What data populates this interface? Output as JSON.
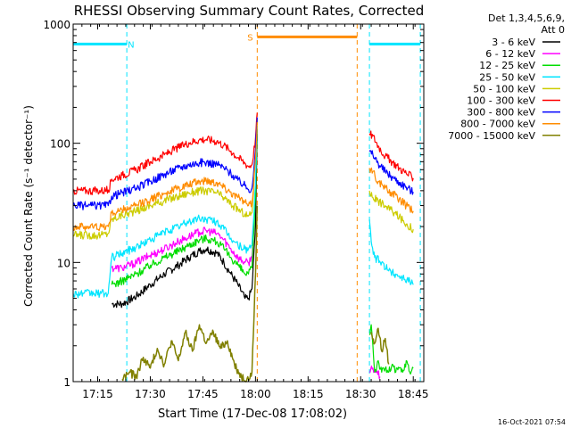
{
  "chart_data": {
    "type": "line",
    "title": "RHESSI Observing Summary Count Rates, Corrected",
    "ylabel": "Corrected Count Rate (s⁻¹ detector⁻¹)",
    "xlabel": "Start Time (17-Dec-08 17:08:02)",
    "yscale": "log",
    "ylim": [
      1,
      1000
    ],
    "xlim_min": [
      0,
      100
    ],
    "x_unit": "minutes after 17:08:02",
    "x_ticks": [
      {
        "label": "17:15",
        "min": 7
      },
      {
        "label": "17:30",
        "min": 22
      },
      {
        "label": "17:45",
        "min": 37
      },
      {
        "label": "18:00",
        "min": 52
      },
      {
        "label": "18:15",
        "min": 67
      },
      {
        "label": "18:30",
        "min": 82
      },
      {
        "label": "18:45",
        "min": 97
      }
    ],
    "y_ticks": [
      {
        "label": "1",
        "value": 1
      },
      {
        "label": "10",
        "value": 10
      },
      {
        "label": "100",
        "value": 100
      },
      {
        "label": "1000",
        "value": 1000
      }
    ],
    "legend": {
      "position": "right",
      "header": [
        "Det 1,3,4,5,6,9,",
        "Att 0"
      ]
    },
    "annotations": [
      {
        "text": "N",
        "min": 16.5,
        "value": 680,
        "color": "#00e5ff"
      },
      {
        "text": "S",
        "min": 50.5,
        "value": 780,
        "color": "#ff8c00"
      }
    ],
    "intervals": [
      {
        "name": "night",
        "color": "#00e5ff",
        "x": [
          [
            0,
            15.3
          ],
          [
            84.5,
            99
          ]
        ],
        "level": 680
      },
      {
        "name": "saa",
        "color": "#ff8c00",
        "x": [
          [
            52.5,
            81
          ]
        ],
        "level": 780
      }
    ],
    "series": [
      {
        "name": "3 - 6 keV",
        "color": "#000000",
        "lw": 1.2,
        "x": [
          11,
          14,
          18,
          22,
          26,
          30,
          33,
          36,
          38,
          41,
          43,
          45,
          47,
          49,
          50,
          51,
          52,
          52.5
        ],
        "y": [
          4.5,
          4.5,
          5.2,
          6.5,
          8,
          9.5,
          11,
          12.5,
          13,
          12,
          10,
          8,
          6.5,
          5,
          5,
          6,
          20,
          120
        ]
      },
      {
        "name": "6 - 12 keV",
        "color": "#ff00ff",
        "lw": 1.2,
        "x": [
          11,
          14,
          18,
          22,
          26,
          30,
          33,
          36,
          38,
          41,
          43,
          45,
          47,
          49,
          50,
          51,
          52,
          52.5,
          84.5,
          85.5,
          86.5,
          87.5
        ],
        "y": [
          9,
          9,
          10,
          11.5,
          13,
          15,
          16.5,
          18,
          18.5,
          17.5,
          15.5,
          13,
          11,
          10,
          10,
          11,
          40,
          130,
          1.2,
          1.3,
          1.2,
          1.1
        ]
      },
      {
        "name": "12 - 25 keV",
        "color": "#00dd00",
        "lw": 1.2,
        "x": [
          11,
          14,
          18,
          22,
          26,
          30,
          33,
          36,
          38,
          41,
          43,
          45,
          47,
          49,
          50,
          51,
          52,
          52.5,
          84.5,
          85,
          85.5,
          86,
          87,
          88,
          89,
          90,
          91,
          92,
          93,
          94,
          95,
          96,
          97
        ],
        "y": [
          6.5,
          7,
          8,
          9.5,
          11,
          12.5,
          14,
          15.5,
          16,
          15,
          13,
          11,
          9.5,
          8,
          8,
          9,
          35,
          130,
          2.5,
          3,
          2,
          1.2,
          1.5,
          1.2,
          1.3,
          1.2,
          1.4,
          1.2,
          1.3,
          1.2,
          1.5,
          1.2,
          1.3
        ]
      },
      {
        "name": "25 - 50 keV",
        "color": "#00e5ff",
        "lw": 1.2,
        "x": [
          0,
          3,
          6,
          8,
          10,
          11,
          14,
          18,
          22,
          26,
          30,
          33,
          36,
          38,
          41,
          43,
          45,
          47,
          49,
          50,
          51,
          52,
          52.5,
          84.5,
          85,
          86,
          88,
          90,
          92,
          94,
          96,
          97
        ],
        "y": [
          5.5,
          5.5,
          5.5,
          5.5,
          5.5,
          11,
          12,
          13.5,
          15.5,
          18,
          20,
          22,
          23.5,
          23,
          22,
          19,
          16,
          14,
          13,
          13,
          14,
          45,
          140,
          23,
          15,
          11,
          10,
          8.5,
          8,
          7.5,
          7,
          6.5
        ]
      },
      {
        "name": "50 - 100 keV",
        "color": "#cccc00",
        "lw": 1.2,
        "x": [
          0,
          4,
          8,
          10,
          11,
          14,
          18,
          22,
          26,
          30,
          33,
          36,
          38,
          41,
          43,
          45,
          47,
          49,
          50,
          51,
          52,
          52.5,
          84.5,
          85.5,
          87,
          89,
          91,
          93,
          95,
          97
        ],
        "y": [
          17,
          17,
          17,
          17.5,
          23,
          25,
          27,
          30,
          33,
          36,
          38.5,
          40,
          40,
          38.5,
          35,
          31,
          28,
          25.5,
          24.5,
          26,
          80,
          160,
          40,
          35,
          33,
          30,
          27,
          24,
          21,
          19
        ]
      },
      {
        "name": "100 - 300 keV",
        "color": "#ff0000",
        "lw": 1.2,
        "x": [
          0,
          4,
          8,
          10,
          11,
          14,
          18,
          22,
          26,
          30,
          33,
          36,
          38,
          41,
          43,
          45,
          47,
          49,
          50,
          51,
          52,
          52.5,
          84.5,
          85.5,
          87,
          89,
          91,
          93,
          95,
          97
        ],
        "y": [
          40,
          40,
          40,
          40.5,
          50,
          54,
          60,
          70,
          80,
          92,
          101,
          107,
          108,
          104,
          96,
          86,
          76,
          68,
          64,
          66,
          110,
          180,
          120,
          115,
          95,
          78,
          70,
          62,
          56,
          51
        ]
      },
      {
        "name": "300 - 800 keV",
        "color": "#0000ff",
        "lw": 1.2,
        "x": [
          0,
          4,
          8,
          10,
          11,
          14,
          18,
          22,
          26,
          30,
          33,
          36,
          38,
          41,
          43,
          45,
          47,
          49,
          50,
          51,
          52,
          52.5,
          84.5,
          85.5,
          87,
          89,
          91,
          93,
          95,
          97
        ],
        "y": [
          30,
          30,
          30,
          30,
          36,
          38.5,
          42,
          48,
          55,
          62,
          66,
          69,
          69,
          67,
          62,
          56,
          49,
          44,
          41,
          42,
          90,
          165,
          85,
          80,
          68,
          58,
          52,
          47,
          43,
          39
        ]
      },
      {
        "name": "800 - 7000 keV",
        "color": "#ff8c00",
        "lw": 1.2,
        "x": [
          0,
          4,
          8,
          10,
          11,
          14,
          18,
          22,
          26,
          30,
          33,
          36,
          38,
          41,
          43,
          45,
          47,
          49,
          50,
          51,
          52,
          52.5,
          84.5,
          85.5,
          87,
          89,
          91,
          93,
          95,
          97
        ],
        "y": [
          20,
          20,
          20,
          20,
          26,
          27.5,
          30,
          34,
          38,
          42,
          45,
          48,
          49,
          47,
          43,
          39,
          35,
          32,
          30,
          31,
          75,
          150,
          62,
          58,
          48,
          42,
          38,
          34,
          30,
          27
        ]
      },
      {
        "name": "7000 - 15000 keV",
        "color": "#808000",
        "lw": 1.5,
        "x": [
          14,
          16,
          18,
          20,
          22,
          24,
          26,
          28,
          30,
          32,
          34,
          36,
          38,
          40,
          42,
          44,
          46,
          48,
          50,
          51,
          52,
          52.5,
          85,
          86,
          87,
          88,
          89,
          90
        ],
        "y": [
          1.05,
          1.2,
          1.1,
          1.6,
          1.3,
          1.9,
          1.4,
          2.2,
          1.5,
          2.6,
          1.8,
          3,
          2.1,
          2.6,
          1.9,
          2.2,
          1.4,
          1.1,
          1.05,
          1.2,
          8,
          30,
          2.6,
          2.1,
          2.8,
          1.8,
          2.3,
          1.4
        ]
      }
    ]
  },
  "timestamp": "16-Oct-2021 07:54"
}
